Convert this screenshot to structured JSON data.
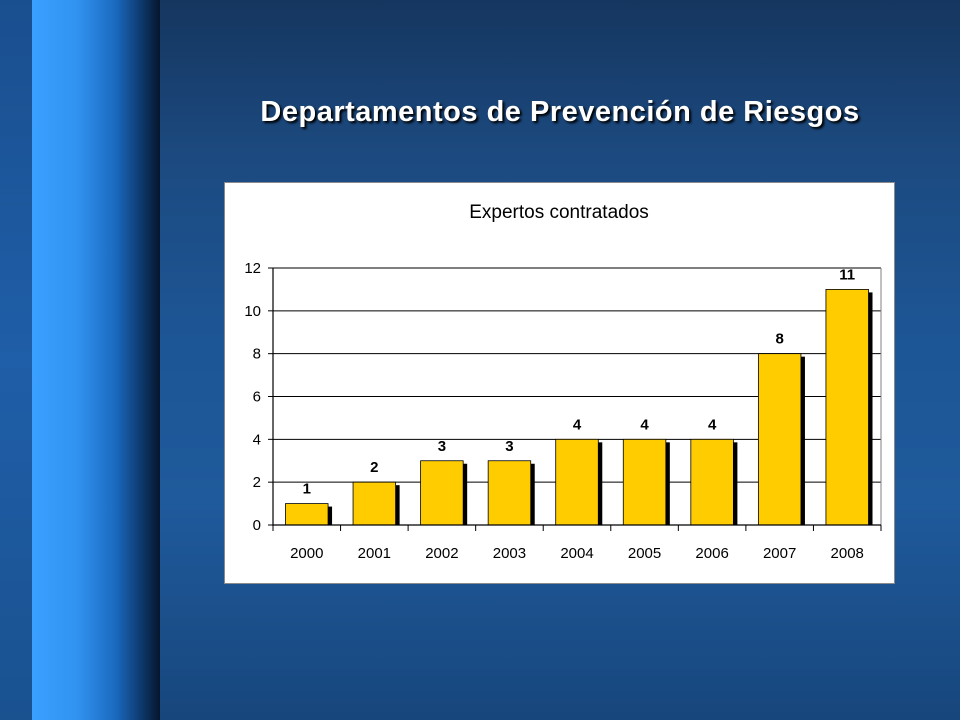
{
  "slide": {
    "title": "Departamentos de Prevención de Riesgos"
  },
  "colors": {
    "bar_fill": "#ffcc00",
    "bar_shadow": "#000000",
    "gridline": "#000000"
  },
  "chart_data": {
    "type": "bar",
    "title": "Expertos contratados",
    "xlabel": "",
    "ylabel": "",
    "categories": [
      "2000",
      "2001",
      "2002",
      "2003",
      "2004",
      "2005",
      "2006",
      "2007",
      "2008"
    ],
    "values": [
      1,
      2,
      3,
      3,
      4,
      4,
      4,
      8,
      11
    ],
    "data_labels": [
      "1",
      "2",
      "3",
      "3",
      "4",
      "4",
      "4",
      "8",
      "11"
    ],
    "ylim": [
      0,
      12
    ],
    "yticks": [
      0,
      2,
      4,
      6,
      8,
      10,
      12
    ],
    "grid": true,
    "legend": "none"
  }
}
